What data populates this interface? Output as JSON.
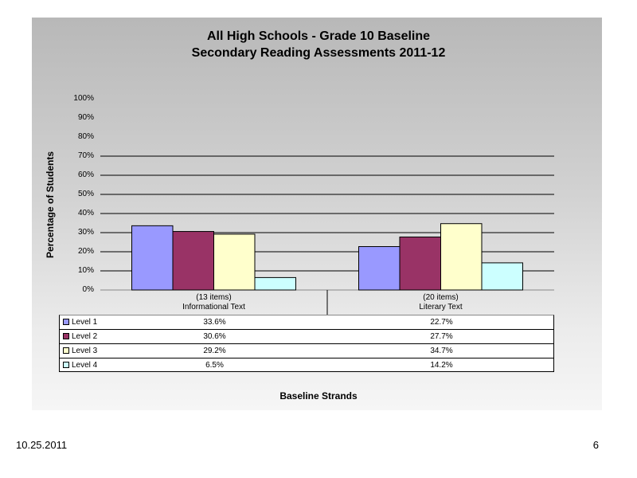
{
  "chart_data": {
    "type": "bar",
    "title": "All High Schools - Grade 10 Baseline",
    "subtitle": "Secondary Reading Assessments 2011-12",
    "ylabel": "Percentage of Students",
    "xlabel": "Baseline Strands",
    "ylim": [
      0,
      100
    ],
    "yticks": [
      "0%",
      "10%",
      "20%",
      "30%",
      "40%",
      "50%",
      "60%",
      "70%",
      "80%",
      "90%",
      "100%"
    ],
    "categories": [
      {
        "line1": "(13 items)",
        "line2": "Informational Text"
      },
      {
        "line1": "(20 items)",
        "line2": "Literary Text"
      }
    ],
    "series": [
      {
        "name": "Level 1",
        "color": "#9999ff",
        "values": [
          33.6,
          22.7
        ],
        "labels": [
          "33.6%",
          "22.7%"
        ]
      },
      {
        "name": "Level 2",
        "color": "#993366",
        "values": [
          30.6,
          27.7
        ],
        "labels": [
          "30.6%",
          "27.7%"
        ]
      },
      {
        "name": "Level 3",
        "color": "#ffffcc",
        "values": [
          29.2,
          34.7
        ],
        "labels": [
          "29.2%",
          "34.7%"
        ]
      },
      {
        "name": "Level 4",
        "color": "#ccffff",
        "values": [
          6.5,
          14.2
        ],
        "labels": [
          "6.5%",
          "14.2%"
        ]
      }
    ],
    "grid": true,
    "legend": "data-table"
  },
  "footer": {
    "date": "10.25.2011",
    "page": "6"
  }
}
